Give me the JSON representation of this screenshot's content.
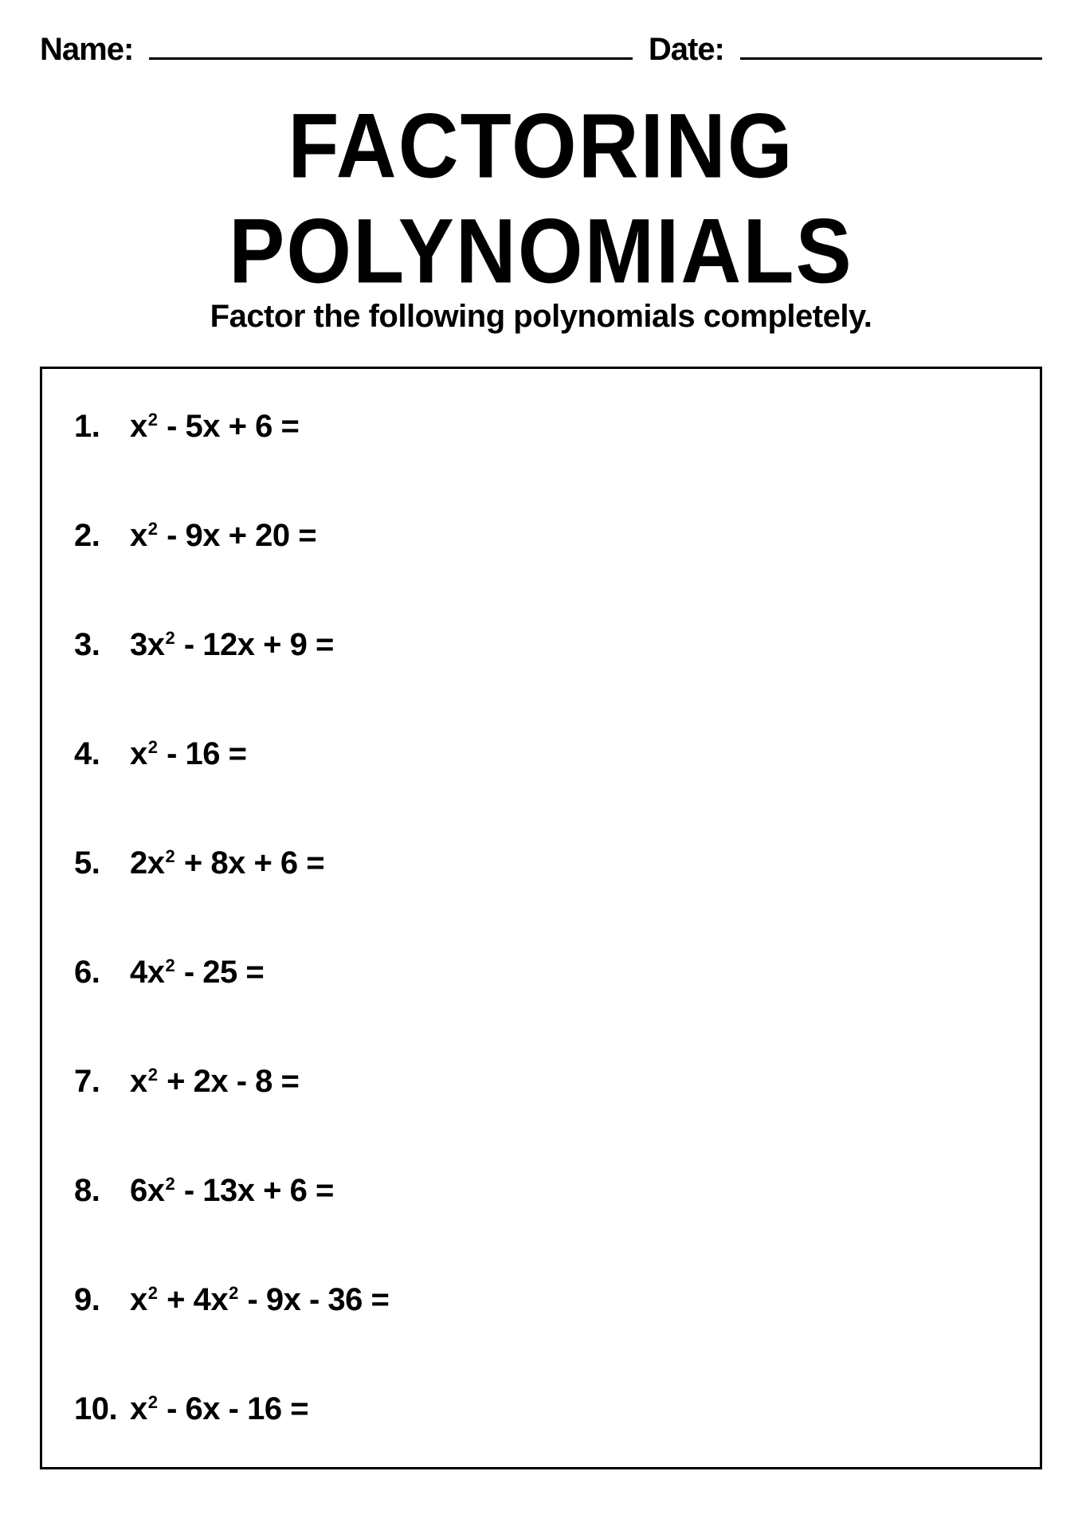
{
  "header": {
    "name_label": "Name:",
    "date_label": "Date:"
  },
  "title": "FACTORING POLYNOMIALS",
  "subtitle": "Factor the following polynomials completely.",
  "problems": [
    {
      "num": "1.",
      "coef1": "",
      "var1": "x",
      "exp1": "2",
      "op1": "-",
      "coef2": "5",
      "var2": "x",
      "exp2": "",
      "op2": "+",
      "coef3": "6",
      "var3": "",
      "exp3": "",
      "extra": ""
    },
    {
      "num": "2.",
      "coef1": "",
      "var1": "x",
      "exp1": "2",
      "op1": "-",
      "coef2": "9",
      "var2": "x",
      "exp2": "",
      "op2": "+",
      "coef3": "20",
      "var3": "",
      "exp3": "",
      "extra": ""
    },
    {
      "num": "3.",
      "coef1": "3",
      "var1": "x",
      "exp1": "2",
      "op1": "-",
      "coef2": "12",
      "var2": "x",
      "exp2": "",
      "op2": "+",
      "coef3": "9",
      "var3": "",
      "exp3": "",
      "extra": ""
    },
    {
      "num": "4.",
      "coef1": "",
      "var1": "x",
      "exp1": "2",
      "op1": "-",
      "coef2": "16",
      "var2": "",
      "exp2": "",
      "op2": "",
      "coef3": "",
      "var3": "",
      "exp3": "",
      "extra": ""
    },
    {
      "num": "5.",
      "coef1": "2",
      "var1": "x",
      "exp1": "2",
      "op1": "+",
      "coef2": "8",
      "var2": "x",
      "exp2": "",
      "op2": "+",
      "coef3": "6",
      "var3": "",
      "exp3": "",
      "extra": ""
    },
    {
      "num": "6.",
      "coef1": "4",
      "var1": "x",
      "exp1": "2",
      "op1": "-",
      "coef2": "25",
      "var2": "",
      "exp2": "",
      "op2": "",
      "coef3": "",
      "var3": "",
      "exp3": "",
      "extra": ""
    },
    {
      "num": "7.",
      "coef1": "",
      "var1": "x",
      "exp1": "2",
      "op1": "+",
      "coef2": "2",
      "var2": "x",
      "exp2": "",
      "op2": "-",
      "coef3": "8",
      "var3": "",
      "exp3": "",
      "extra": ""
    },
    {
      "num": "8.",
      "coef1": "6",
      "var1": "x",
      "exp1": "2",
      "op1": "-",
      "coef2": "13",
      "var2": "x",
      "exp2": "",
      "op2": "+",
      "coef3": "6",
      "var3": "",
      "exp3": "",
      "extra": ""
    },
    {
      "num": "9.",
      "coef1": "",
      "var1": "x",
      "exp1": "2",
      "op1": "+",
      "coef2": "4",
      "var2": "x",
      "exp2": "2",
      "op2": "-",
      "coef3": "9",
      "var3": "x",
      "exp3": "",
      "extra": " - 36"
    },
    {
      "num": "10.",
      "coef1": "",
      "var1": "x",
      "exp1": "2",
      "op1": "-",
      "coef2": "6",
      "var2": "x",
      "exp2": "",
      "op2": "-",
      "coef3": "16",
      "var3": "",
      "exp3": "",
      "extra": ""
    }
  ],
  "styling": {
    "page_bg": "#ffffff",
    "text_color": "#000000",
    "border_color": "#000000",
    "title_fontsize": 100,
    "subtitle_fontsize": 40,
    "label_fontsize": 40,
    "problem_fontsize": 40,
    "sup_fontsize": 22,
    "box_border_width": 3,
    "underline_width": 3,
    "problem_spacing": 92
  }
}
